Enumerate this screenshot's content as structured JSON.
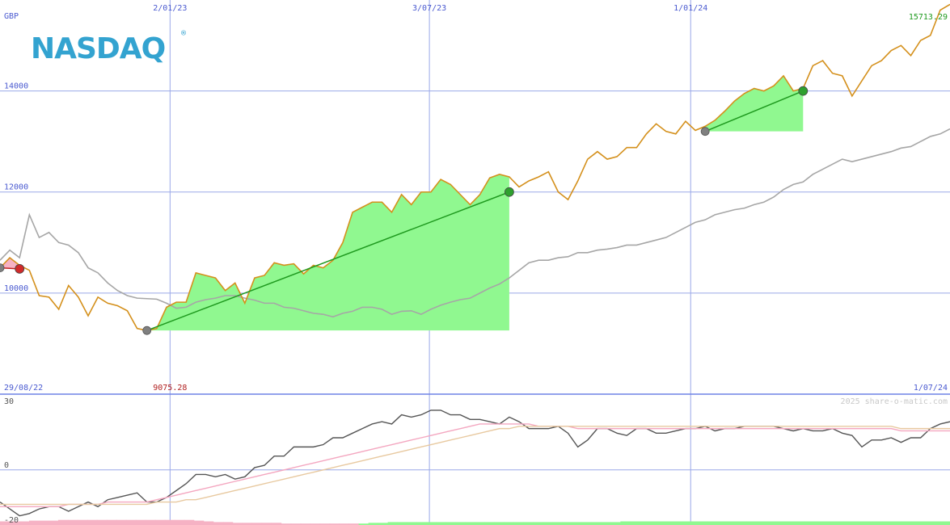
{
  "chart_data": [
    {
      "type": "line",
      "currency": "GBP",
      "logo": "NASDAQ",
      "date_labels": [
        "2/01/23",
        "3/07/23",
        "1/01/24"
      ],
      "start_date": "29/08/22",
      "end_date": "1/07/24",
      "low_label": "9075.28",
      "last_label": "15713.29",
      "yticks": [
        10000,
        12000,
        14000
      ],
      "ylim": [
        8000,
        15800
      ],
      "series": [
        {
          "values": [
            10500,
            10700,
            10550,
            10450,
            9950,
            9920,
            9680,
            10150,
            9920,
            9550,
            9920,
            9800,
            9750,
            9650,
            9300,
            9260,
            9300,
            9720,
            9820,
            9820,
            10400,
            10350,
            10300,
            10050,
            10200,
            9800,
            10300,
            10350,
            10600,
            10550,
            10580,
            10380,
            10550,
            10500,
            10650,
            11000,
            11600,
            11700,
            11800,
            11800,
            11600,
            11950,
            11750,
            12000,
            12000,
            12250,
            12150,
            11950,
            11750,
            11950,
            12280,
            12350,
            12300,
            12100,
            12220,
            12300,
            12400,
            12000,
            11850,
            12220,
            12650,
            12800,
            12650,
            12700,
            12880,
            12880,
            13150,
            13350,
            13200,
            13150,
            13400,
            13220,
            13300,
            13420,
            13600,
            13800,
            13950,
            14050,
            14000,
            14100,
            14300,
            14000,
            14050,
            14500,
            14600,
            14350,
            14300,
            13900,
            14200,
            14500,
            14600,
            14800,
            14900,
            14700,
            15000,
            15100,
            15600,
            15713.29
          ]
        },
        {
          "values": [
            10650,
            10850,
            10700,
            11550,
            11100,
            11200,
            11000,
            10950,
            10800,
            10500,
            10400,
            10200,
            10050,
            9950,
            9900,
            9890,
            9880,
            9800,
            9700,
            9720,
            9820,
            9870,
            9900,
            9950,
            9950,
            9900,
            9860,
            9800,
            9800,
            9720,
            9700,
            9650,
            9600,
            9580,
            9530,
            9600,
            9640,
            9720,
            9720,
            9680,
            9580,
            9640,
            9650,
            9580,
            9680,
            9760,
            9820,
            9870,
            9900,
            10000,
            10100,
            10180,
            10300,
            10450,
            10600,
            10650,
            10650,
            10700,
            10720,
            10800,
            10800,
            10850,
            10870,
            10900,
            10950,
            10950,
            11000,
            11050,
            11100,
            11200,
            11300,
            11400,
            11450,
            11550,
            11600,
            11650,
            11680,
            11750,
            11800,
            11900,
            12050,
            12150,
            12200,
            12350,
            12450,
            12550,
            12650,
            12600,
            12650,
            12700,
            12750,
            12800,
            12870,
            12900,
            13000,
            13100,
            13150,
            13250
          ]
        }
      ],
      "trades": [
        {
          "entry": [
            0,
            10500
          ],
          "exit": [
            2,
            10480
          ],
          "result": "loss"
        },
        {
          "entry": [
            15,
            9260
          ],
          "exit": [
            52,
            12000
          ],
          "result": "win"
        },
        {
          "entry": [
            72,
            13200
          ],
          "exit": [
            82,
            14000
          ],
          "result": "win"
        }
      ]
    },
    {
      "type": "line",
      "watermark": "2025 share-o-matic.com",
      "yticks": [
        -20,
        0,
        30
      ],
      "ylim": [
        -24,
        33
      ],
      "series": [
        {
          "values": [
            -14,
            -17,
            -20,
            -19,
            -17,
            -16,
            -16,
            -18,
            -16,
            -14,
            -16,
            -13,
            -12,
            -11,
            -10,
            -14,
            -14,
            -12,
            -9,
            -6,
            -2,
            -2,
            -3,
            -2,
            -4,
            -3,
            1,
            2,
            6,
            6,
            10,
            10,
            10,
            11,
            14,
            14,
            16,
            18,
            20,
            21,
            20,
            24,
            23,
            24,
            26,
            26,
            24,
            24,
            22,
            22,
            21,
            20,
            23,
            21,
            18,
            18,
            18,
            19,
            16,
            10,
            13,
            18,
            18,
            16,
            15,
            18,
            18,
            16,
            16,
            17,
            18,
            18,
            19,
            17,
            18,
            18,
            19,
            19,
            19,
            19,
            18,
            17,
            18,
            17,
            17,
            18,
            16,
            15,
            10,
            13,
            13,
            14,
            12,
            14,
            14,
            18,
            20,
            21
          ],
          "color": "#555555"
        },
        {
          "values": [
            -16,
            -16,
            -16,
            -16,
            -16,
            -16,
            -16,
            -15,
            -15,
            -15,
            -15,
            -14,
            -14,
            -14,
            -14,
            -14,
            -13,
            -12,
            -11,
            -10,
            -9,
            -8,
            -7,
            -6,
            -5,
            -4,
            -3,
            -2,
            -1,
            0,
            1,
            2,
            3,
            4,
            5,
            6,
            7,
            8,
            9,
            10,
            11,
            12,
            13,
            14,
            15,
            16,
            17,
            18,
            19,
            20,
            20,
            20,
            20,
            20,
            20,
            19,
            19,
            19,
            19,
            18,
            18,
            18,
            18,
            18,
            18,
            18,
            18,
            18,
            18,
            18,
            18,
            18,
            18,
            18,
            18,
            18,
            18,
            18,
            18,
            18,
            18,
            18,
            18,
            18,
            18,
            18,
            18,
            18,
            18,
            18,
            18,
            18,
            17,
            17,
            17,
            17,
            17,
            17
          ],
          "color": "#f4a7c0"
        },
        {
          "values": [
            -15,
            -15,
            -15,
            -15,
            -15,
            -15,
            -15,
            -15,
            -15,
            -15,
            -15,
            -15,
            -15,
            -15,
            -15,
            -15,
            -14,
            -14,
            -14,
            -13,
            -13,
            -12,
            -11,
            -10,
            -9,
            -8,
            -7,
            -6,
            -5,
            -4,
            -3,
            -2,
            -1,
            0,
            1,
            2,
            3,
            4,
            5,
            6,
            7,
            8,
            9,
            10,
            11,
            12,
            13,
            14,
            15,
            16,
            17,
            18,
            18,
            19,
            19,
            19,
            19,
            19,
            19,
            19,
            19,
            19,
            19,
            19,
            19,
            19,
            19,
            19,
            19,
            19,
            19,
            19,
            19,
            19,
            19,
            19,
            19,
            19,
            19,
            19,
            19,
            19,
            19,
            19,
            19,
            19,
            19,
            19,
            19,
            19,
            19,
            19,
            18,
            18,
            18,
            18,
            18,
            18
          ],
          "color": "#e8c9a0"
        }
      ],
      "histogram": [
        -19,
        -19,
        -19,
        -18,
        -18,
        -18,
        -17,
        -17,
        -17,
        -17,
        -17,
        -17,
        -17,
        -17,
        -17,
        -17,
        -17,
        -17,
        -17,
        -17,
        -18,
        -19,
        -20,
        -20,
        -21,
        -21,
        -21,
        -21,
        -21,
        -22,
        -22,
        -22,
        -22,
        -22,
        -22,
        -22,
        -22,
        -22,
        -21,
        -21,
        -20,
        -20,
        -20,
        -20,
        -20,
        -20,
        -20,
        -20,
        -20,
        -20,
        -20,
        -20,
        -20,
        -20,
        -20,
        -20,
        -20,
        -20,
        -20,
        -20,
        -20,
        -20,
        -20,
        -20,
        -19,
        -19,
        -19,
        -19,
        -19,
        -19,
        -19,
        -19,
        -19,
        -19,
        -19,
        -19,
        -19,
        -19,
        -19,
        -19,
        -19,
        -19,
        -19,
        -19,
        -19,
        -19,
        -19,
        -19,
        -19,
        -19,
        -19,
        -19,
        -19,
        -19,
        -19,
        -19,
        -19,
        -19
      ]
    }
  ]
}
